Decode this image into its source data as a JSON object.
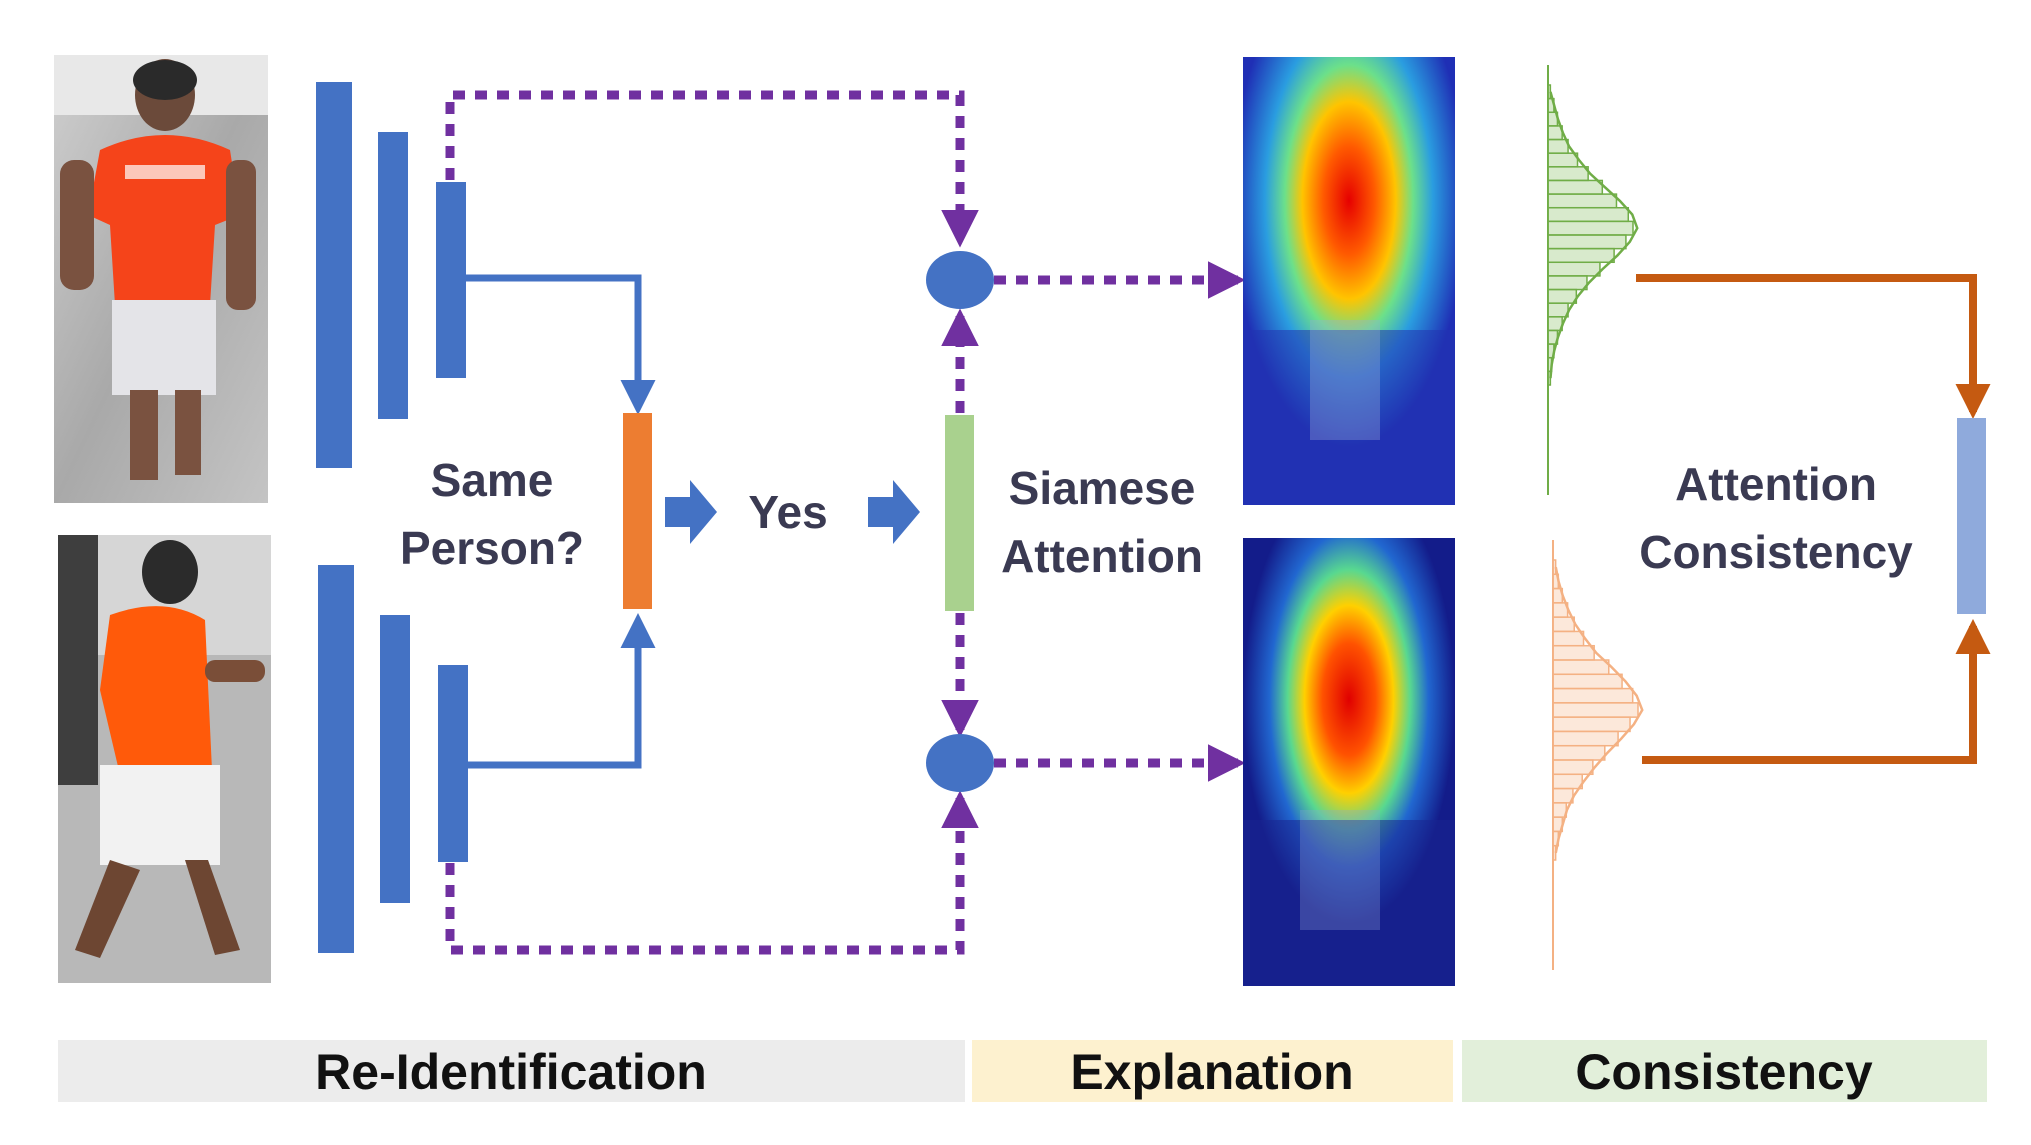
{
  "labels": {
    "same_person_line1": "Same",
    "same_person_line2": "Person?",
    "yes": "Yes",
    "siamese_line1": "Siamese",
    "siamese_line2": "Attention",
    "consistency_line1": "Attention",
    "consistency_line2": "Consistency"
  },
  "bands": {
    "reid": "Re-Identification",
    "explanation": "Explanation",
    "consistency": "Consistency"
  },
  "colors": {
    "network_blue": "#4472c4",
    "dotted_purple": "#7030a0",
    "fusion_orange": "#ed7d31",
    "attention_green": "#a9d18e",
    "consistency_orange": "#c55a11",
    "output_blue": "#8faadc",
    "band_gray": "#ececec",
    "band_yellow": "#fdf1cf",
    "band_green": "#e2efda",
    "hist_green": "#70ad47",
    "hist_orange": "#f4b183"
  },
  "histograms": {
    "top_bins": [
      2,
      5,
      8,
      12,
      17,
      25,
      34,
      46,
      58,
      68,
      72,
      66,
      56,
      44,
      33,
      24,
      17,
      12,
      8,
      5,
      3,
      2
    ],
    "bottom_bins": [
      2,
      4,
      7,
      11,
      16,
      23,
      31,
      42,
      52,
      60,
      64,
      58,
      49,
      39,
      30,
      22,
      15,
      10,
      7,
      4,
      2
    ]
  }
}
